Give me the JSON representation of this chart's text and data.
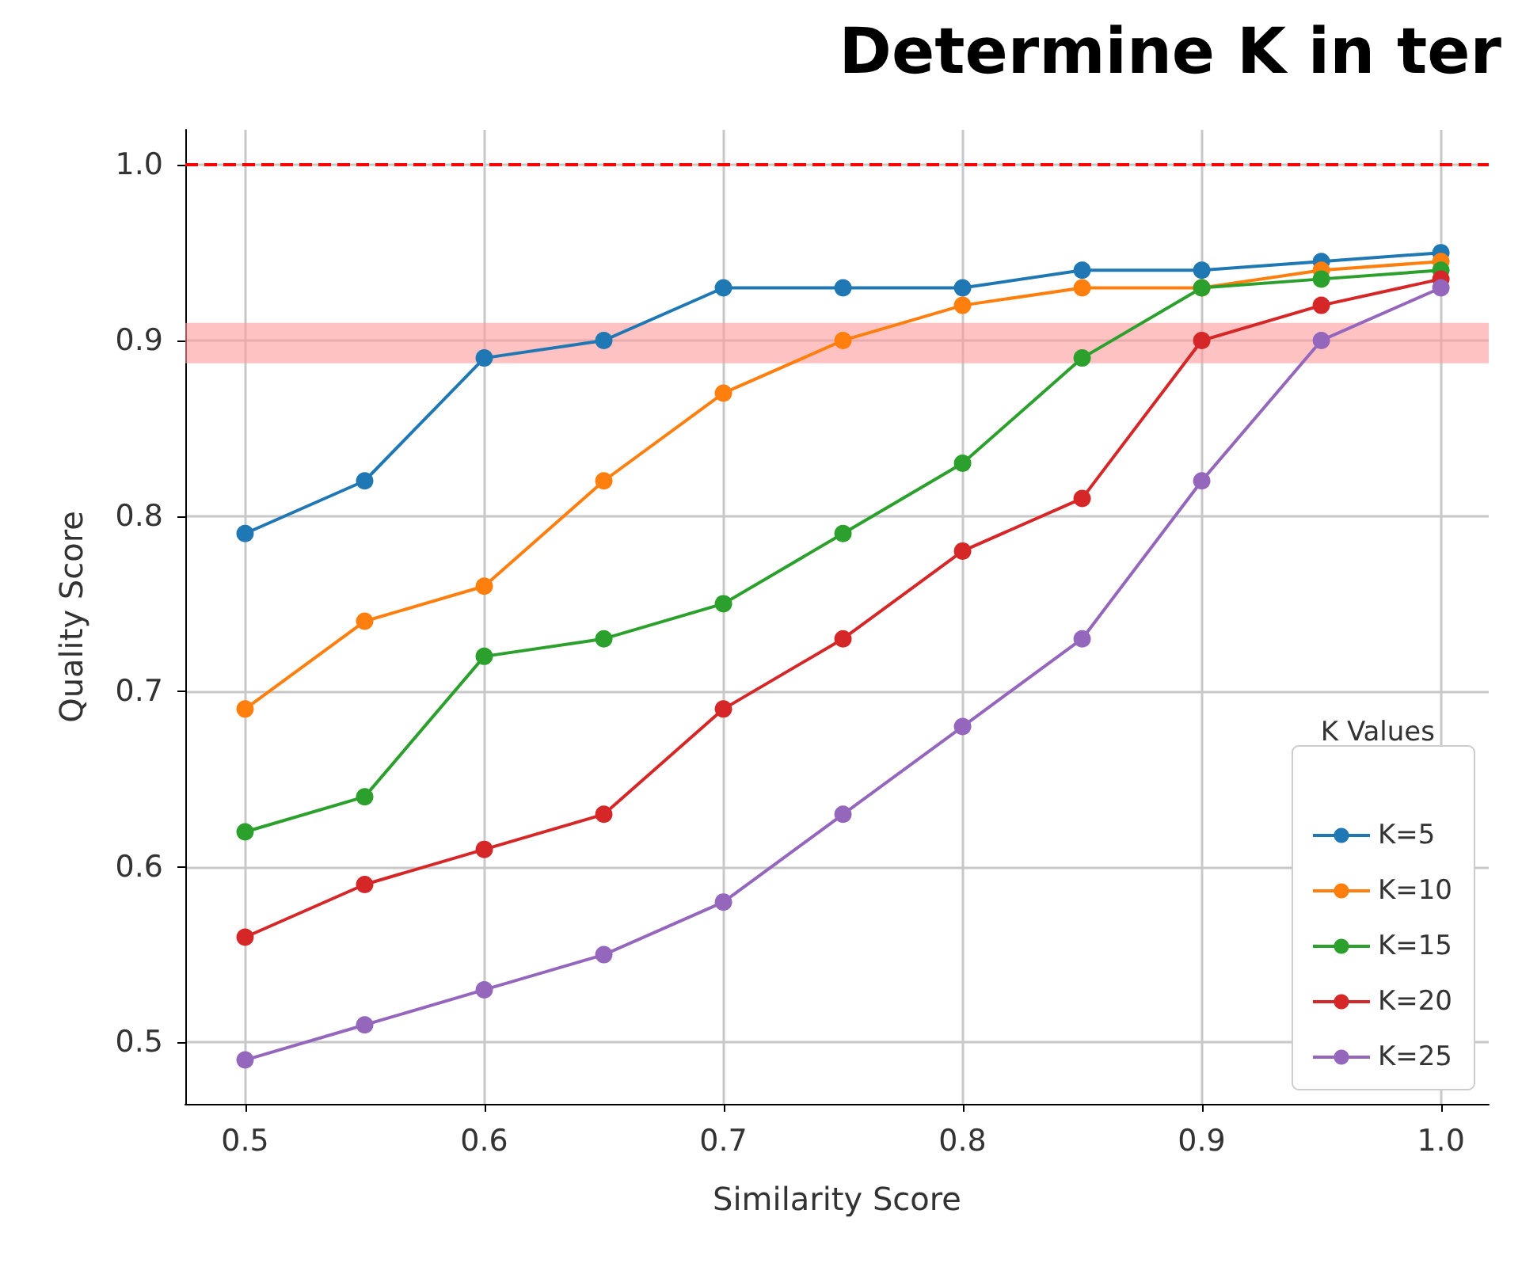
{
  "chart_data": {
    "type": "line",
    "title": "Determine K in ter",
    "xlabel": "Similarity Score",
    "ylabel": "Quality Score",
    "legend_title": "K Values",
    "x": [
      0.5,
      0.55,
      0.6,
      0.65,
      0.7,
      0.75,
      0.8,
      0.85,
      0.9,
      0.95,
      1.0
    ],
    "series": [
      {
        "name": "K=5",
        "color": "#1f77b4",
        "values": [
          0.79,
          0.82,
          0.89,
          0.9,
          0.93,
          0.93,
          0.93,
          0.94,
          0.94,
          0.945,
          0.95
        ]
      },
      {
        "name": "K=10",
        "color": "#ff7f0e",
        "values": [
          0.69,
          0.74,
          0.76,
          0.82,
          0.87,
          0.9,
          0.92,
          0.93,
          0.93,
          0.94,
          0.945
        ]
      },
      {
        "name": "K=15",
        "color": "#2ca02c",
        "values": [
          0.62,
          0.64,
          0.72,
          0.73,
          0.75,
          0.79,
          0.83,
          0.89,
          0.93,
          0.935,
          0.94
        ]
      },
      {
        "name": "K=20",
        "color": "#d62728",
        "values": [
          0.56,
          0.59,
          0.61,
          0.63,
          0.69,
          0.73,
          0.78,
          0.81,
          0.9,
          0.92,
          0.935
        ]
      },
      {
        "name": "K=25",
        "color": "#9467bd",
        "values": [
          0.49,
          0.51,
          0.53,
          0.55,
          0.58,
          0.63,
          0.68,
          0.73,
          0.82,
          0.9,
          0.93
        ]
      }
    ],
    "xlim": [
      0.475,
      1.02
    ],
    "ylim": [
      0.465,
      1.02
    ],
    "xticks": [
      {
        "value": 0.5,
        "label": "0.5"
      },
      {
        "value": 0.6,
        "label": "0.6"
      },
      {
        "value": 0.7,
        "label": "0.7"
      },
      {
        "value": 0.8,
        "label": "0.8"
      },
      {
        "value": 0.9,
        "label": "0.9"
      },
      {
        "value": 1.0,
        "label": "1.0"
      }
    ],
    "yticks": [
      {
        "value": 0.5,
        "label": "0.5"
      },
      {
        "value": 0.6,
        "label": "0.6"
      },
      {
        "value": 0.7,
        "label": "0.7"
      },
      {
        "value": 0.8,
        "label": "0.8"
      },
      {
        "value": 0.9,
        "label": "0.9"
      },
      {
        "value": 1.0,
        "label": "1.0"
      }
    ],
    "ref_lines": [
      {
        "axis": "y",
        "value": 1.0,
        "color": "#ff0000",
        "line_style": "dashed"
      }
    ],
    "bands": [
      {
        "axis": "y",
        "from": 0.887,
        "to": 0.91,
        "color": "#ff9999"
      }
    ],
    "grid": true,
    "legend": "bottom right",
    "marker": "circle",
    "line_style": "solid"
  }
}
